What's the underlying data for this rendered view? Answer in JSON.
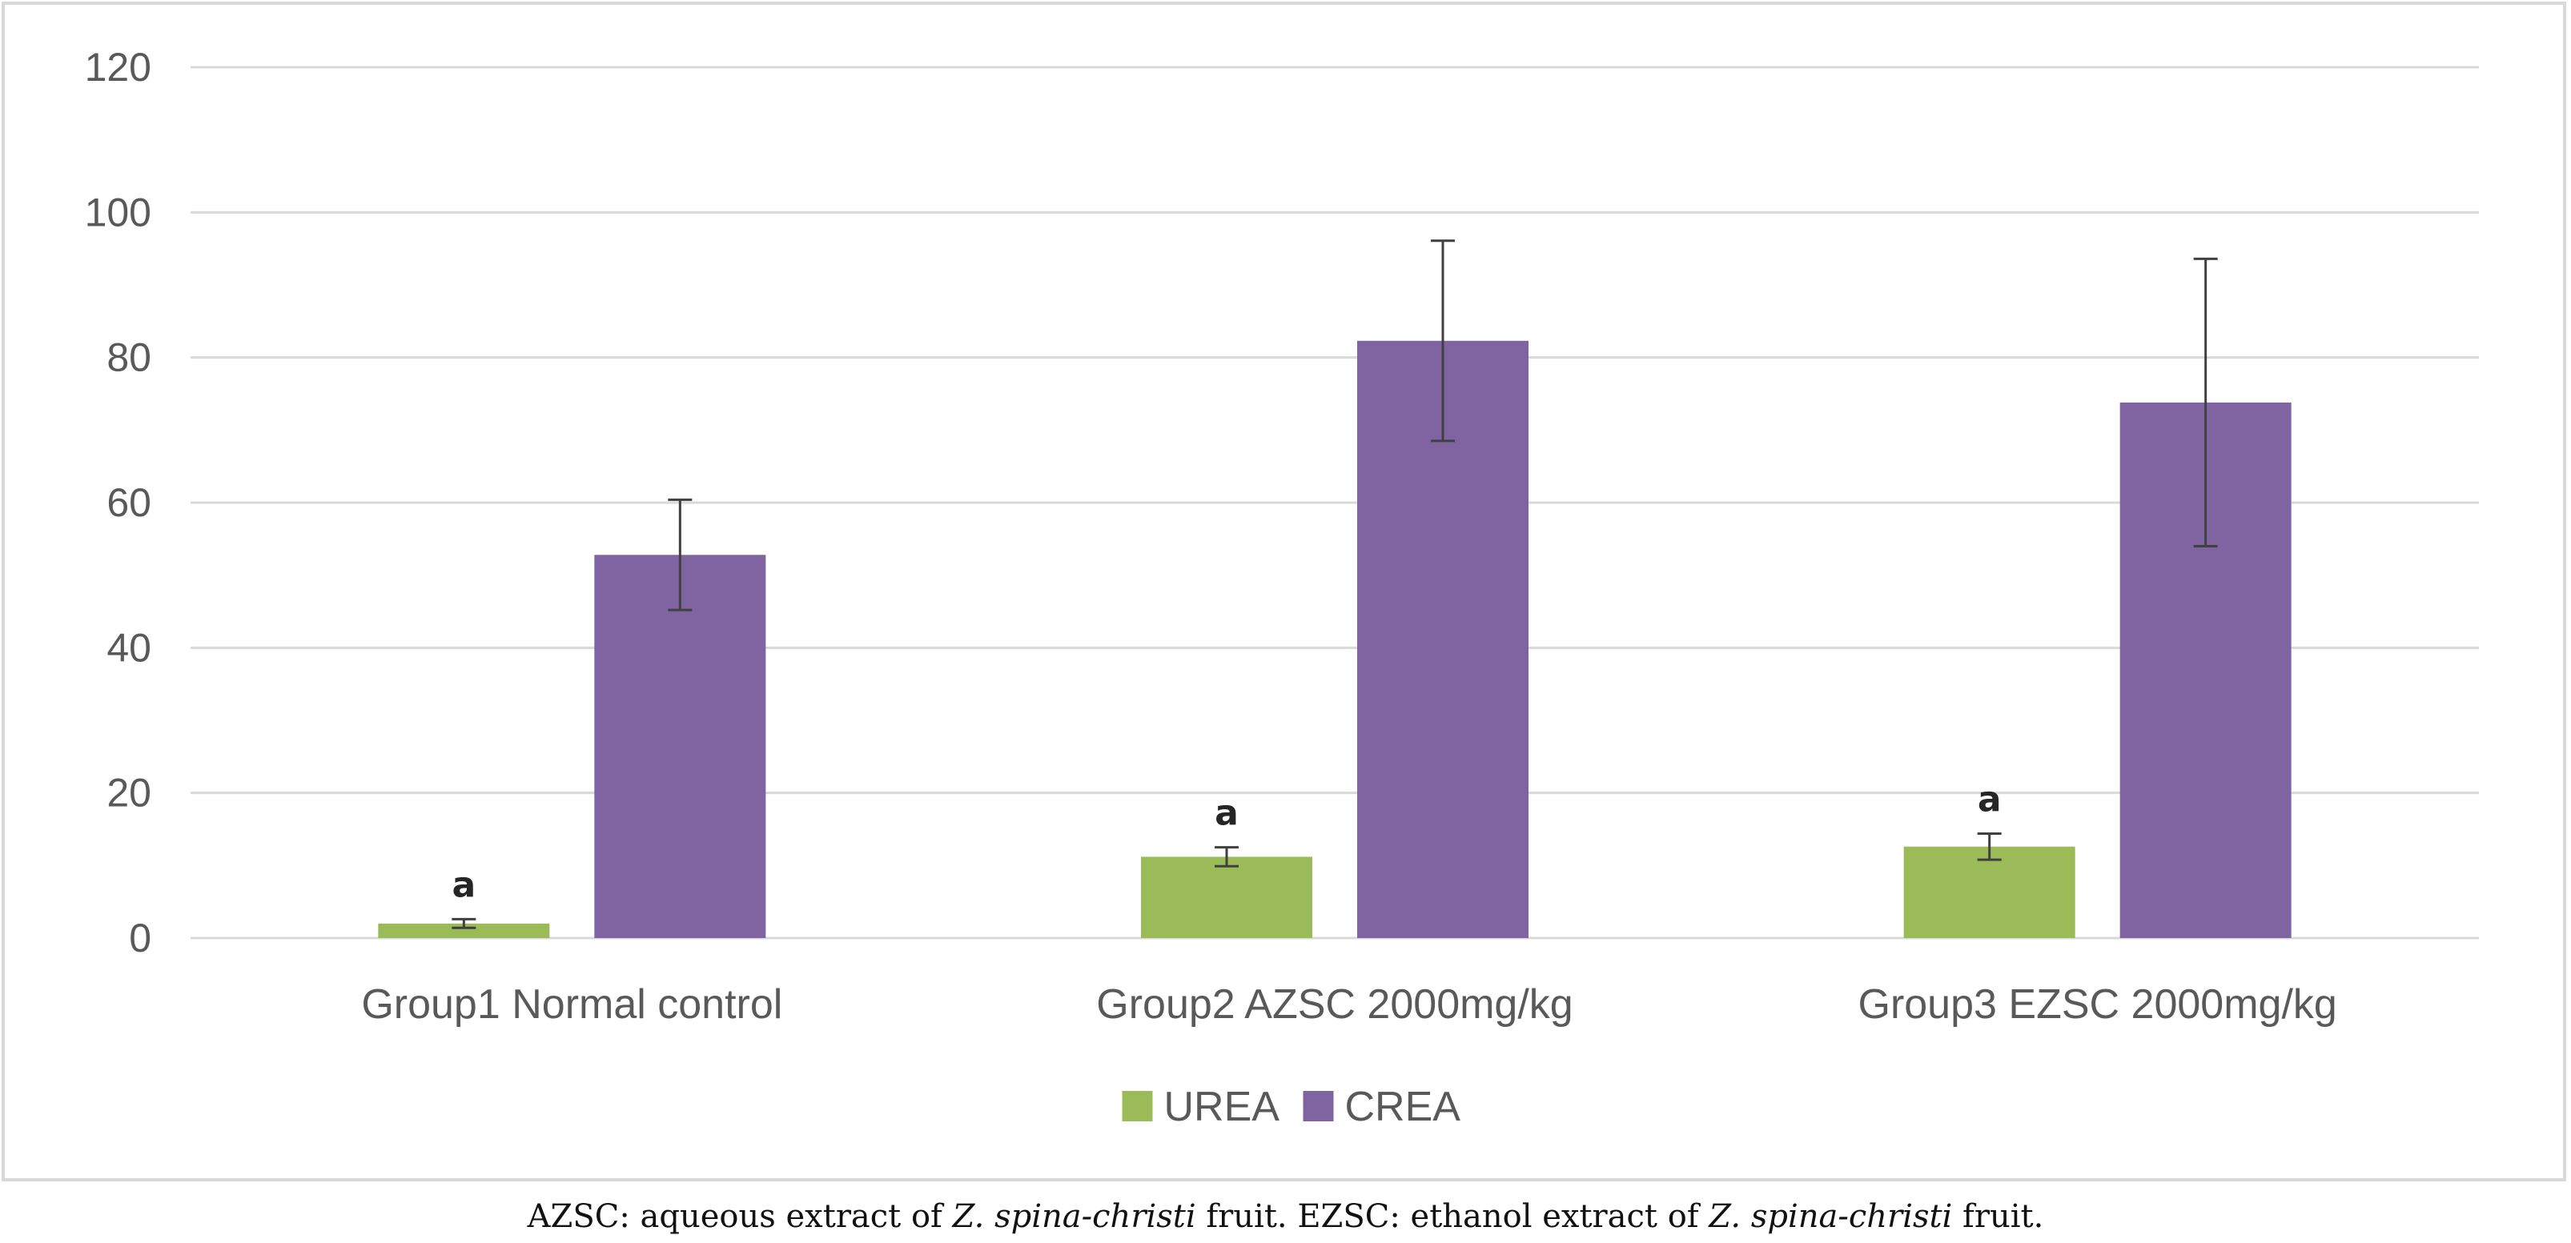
{
  "chart_data": {
    "type": "bar",
    "categories": [
      "Group1 Normal control",
      "Group2 AZSC 2000mg/kg",
      "Group3 EZSC 2000mg/kg"
    ],
    "series": [
      {
        "name": "UREA",
        "color": "#9bbb59",
        "values": [
          2,
          11.2,
          12.6
        ],
        "errors": [
          0.6,
          1.3,
          1.8
        ],
        "labels": [
          "a",
          "a",
          "a"
        ]
      },
      {
        "name": "CREA",
        "color": "#8064a2",
        "values": [
          52.8,
          82.3,
          73.8
        ],
        "errors": [
          7.6,
          13.8,
          19.8
        ],
        "labels": [
          "",
          "",
          ""
        ]
      }
    ],
    "ylim": [
      0,
      120
    ],
    "yticks": [
      0,
      20,
      40,
      60,
      80,
      100,
      120
    ],
    "grid": true,
    "legend_position": "bottom",
    "title": "",
    "xlabel": "",
    "ylabel": ""
  },
  "caption": {
    "parts": [
      {
        "text": "AZSC: aqueous extract of ",
        "italic": false
      },
      {
        "text": "Z. spina-christi",
        "italic": true
      },
      {
        "text": " fruit. EZSC: ethanol extract of ",
        "italic": false
      },
      {
        "text": "Z. spina-christi",
        "italic": true
      },
      {
        "text": " fruit.",
        "italic": false
      }
    ]
  }
}
